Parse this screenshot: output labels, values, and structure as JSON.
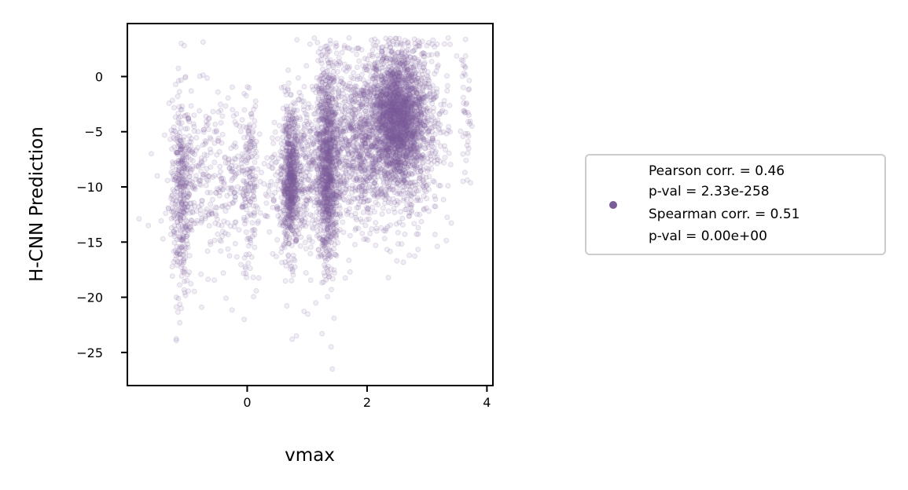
{
  "chart_data": {
    "type": "scatter",
    "title": "",
    "xlabel": "vmax",
    "ylabel": "H-CNN Prediction",
    "xlim": [
      -2.0,
      4.1
    ],
    "ylim": [
      -28.0,
      4.8
    ],
    "x_ticks": [
      0,
      2,
      4
    ],
    "x_tick_labels": [
      "0",
      "2",
      "4"
    ],
    "y_ticks": [
      0,
      -5,
      -10,
      -15,
      -20,
      -25
    ],
    "y_tick_labels": [
      "0",
      "−5",
      "−10",
      "−15",
      "−20",
      "−25"
    ],
    "grid": false,
    "legend_position": "right",
    "point_color": "#7b5c9b",
    "point_opacity": 0.18,
    "legend": {
      "marker_color": "#7b5c9b",
      "lines": [
        "Pearson corr. = 0.46",
        "p-val = 2.33e-258",
        "Spearman corr. = 0.51",
        "p-val = 0.00e+00"
      ]
    },
    "series": [
      {
        "clusters": [
          {
            "x": -1.1,
            "x_spread": 0.08,
            "y": -10.5,
            "y_spread": 4.5,
            "n": 350
          },
          {
            "x": -0.8,
            "x_spread": 0.25,
            "y": -9.5,
            "y_spread": 4.0,
            "n": 220
          },
          {
            "x": -0.25,
            "x_spread": 0.2,
            "y": -9.5,
            "y_spread": 4.0,
            "n": 120
          },
          {
            "x": 0.05,
            "x_spread": 0.07,
            "y": -10.0,
            "y_spread": 3.8,
            "n": 150
          },
          {
            "x": 0.45,
            "x_spread": 0.15,
            "y": -9.0,
            "y_spread": 3.5,
            "n": 70
          },
          {
            "x": 0.72,
            "x_spread": 0.07,
            "y": -9.5,
            "y_spread": 3.0,
            "n": 700
          },
          {
            "x": 1.0,
            "x_spread": 0.15,
            "y": -8.0,
            "y_spread": 4.0,
            "n": 250
          },
          {
            "x": 1.35,
            "x_spread": 0.09,
            "y": -8.0,
            "y_spread": 4.5,
            "n": 1100
          },
          {
            "x": 1.8,
            "x_spread": 0.25,
            "y": -6.0,
            "y_spread": 3.8,
            "n": 700
          },
          {
            "x": 2.5,
            "x_spread": 0.22,
            "y": -3.5,
            "y_spread": 2.8,
            "n": 2000
          },
          {
            "x": 2.5,
            "x_spread": 0.35,
            "y": -7.0,
            "y_spread": 4.0,
            "n": 600
          },
          {
            "x": 3.0,
            "x_spread": 0.2,
            "y": -3.0,
            "y_spread": 3.5,
            "n": 180
          },
          {
            "x": 3.65,
            "x_spread": 0.04,
            "y": -3.0,
            "y_spread": 3.5,
            "n": 40
          }
        ],
        "points": [
          {
            "x": -1.6,
            "y": -7.0
          },
          {
            "x": -1.5,
            "y": -9.0
          },
          {
            "x": -1.65,
            "y": -13.5
          },
          {
            "x": -0.05,
            "y": -22.0
          },
          {
            "x": 0.75,
            "y": -23.8
          },
          {
            "x": 0.82,
            "y": -23.5
          },
          {
            "x": 1.4,
            "y": -24.5
          },
          {
            "x": 1.42,
            "y": -26.5
          },
          {
            "x": -1.1,
            "y": -21.0
          },
          {
            "x": -1.1,
            "y": 3.0
          },
          {
            "x": -1.05,
            "y": 2.8
          },
          {
            "x": 3.1,
            "y": 3.3
          },
          {
            "x": 3.75,
            "y": -4.5
          },
          {
            "x": 3.6,
            "y": -9.5
          },
          {
            "x": 0.5,
            "y": -14.8
          },
          {
            "x": -0.4,
            "y": -17.8
          },
          {
            "x": 0.1,
            "y": -18.2
          }
        ]
      }
    ]
  }
}
